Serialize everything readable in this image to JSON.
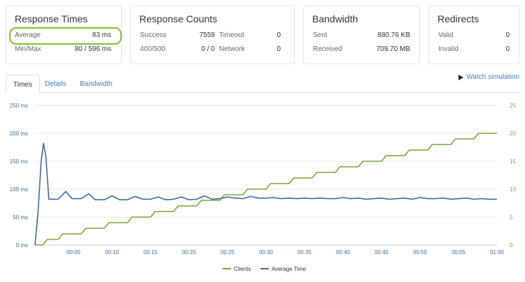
{
  "cards": {
    "response_times": {
      "title": "Response Times",
      "average_label": "Average",
      "average_value": "83 ms",
      "minmax_label": "Min/Max",
      "minmax_value": "80 / 596 ms"
    },
    "response_counts": {
      "title": "Response Counts",
      "success_label": "Success",
      "success_value": "7559",
      "timeout_label": "Timeout",
      "timeout_value": "0",
      "errors_label": "400/500",
      "errors_value": "0 / 0",
      "network_label": "Network",
      "network_value": "0"
    },
    "bandwidth": {
      "title": "Bandwidth",
      "sent_label": "Sent",
      "sent_value": "880.76 KB",
      "received_label": "Received",
      "received_value": "709.70 MB"
    },
    "redirects": {
      "title": "Redirects",
      "valid_label": "Valid",
      "valid_value": "0",
      "invalid_label": "Invalid",
      "invalid_value": "0"
    }
  },
  "tabs": [
    {
      "label": "Times",
      "active": true
    },
    {
      "label": "Details",
      "active": false
    },
    {
      "label": "Bandwidth",
      "active": false
    }
  ],
  "watch_simulation": {
    "label": "Watch simulation",
    "icon": "play-icon"
  },
  "colors": {
    "clients": "#7aa63a",
    "average_time": "#3d6b9e",
    "highlight": "#7cc22a",
    "link": "#3a7ec6"
  },
  "chart_data": {
    "type": "line",
    "title": "",
    "xlabel": "",
    "x_ticks": [
      "00:05",
      "00:10",
      "00:15",
      "00:20",
      "00:25",
      "00:30",
      "00:35",
      "00:40",
      "00:45",
      "00:50",
      "00:55",
      "01:00"
    ],
    "x_range_seconds": [
      0,
      60
    ],
    "y_left": {
      "ticks": [
        "0 ms",
        "50 ms",
        "100 ms",
        "150 ms",
        "200 ms",
        "250 ms"
      ],
      "range": [
        0,
        250
      ],
      "unit": "ms"
    },
    "y_right": {
      "ticks": [
        "0",
        "5",
        "10",
        "15",
        "20",
        "25"
      ],
      "range": [
        0,
        25
      ]
    },
    "grid": true,
    "legend_placement": "bottom",
    "series": [
      {
        "name": "Clients",
        "axis": "right",
        "step_times_seconds": [
          0,
          1,
          3,
          6,
          9,
          12,
          15,
          18,
          21,
          24,
          27,
          30,
          33,
          36,
          39,
          42,
          45,
          48,
          51,
          54,
          57
        ],
        "step_values": [
          0,
          1,
          2,
          3,
          4,
          5,
          6,
          7,
          8,
          9,
          10,
          11,
          12,
          13,
          14,
          15,
          16,
          17,
          18,
          19,
          20
        ],
        "end_seconds": 60
      },
      {
        "name": "Average Time",
        "axis": "left",
        "points": [
          [
            0,
            0
          ],
          [
            0.4,
            60
          ],
          [
            0.8,
            150
          ],
          [
            1.1,
            182
          ],
          [
            1.4,
            160
          ],
          [
            1.8,
            82
          ],
          [
            3,
            82
          ],
          [
            4,
            96
          ],
          [
            4.8,
            83
          ],
          [
            6,
            83
          ],
          [
            7,
            92
          ],
          [
            7.8,
            81
          ],
          [
            9,
            81
          ],
          [
            10,
            88
          ],
          [
            11,
            81
          ],
          [
            12,
            81
          ],
          [
            13,
            87
          ],
          [
            14,
            82
          ],
          [
            15,
            82
          ],
          [
            16,
            86
          ],
          [
            17,
            81
          ],
          [
            18,
            82
          ],
          [
            19,
            86
          ],
          [
            20,
            81
          ],
          [
            21,
            82
          ],
          [
            22,
            88
          ],
          [
            23,
            82
          ],
          [
            24,
            83
          ],
          [
            25,
            86
          ],
          [
            26,
            84
          ],
          [
            27,
            83
          ],
          [
            28,
            87
          ],
          [
            29,
            84
          ],
          [
            30,
            84
          ],
          [
            31,
            85
          ],
          [
            32,
            83
          ],
          [
            33,
            84
          ],
          [
            34,
            83
          ],
          [
            35,
            84
          ],
          [
            36,
            83
          ],
          [
            37,
            84
          ],
          [
            38,
            83
          ],
          [
            39,
            83
          ],
          [
            40,
            85
          ],
          [
            41,
            83
          ],
          [
            42,
            84
          ],
          [
            43,
            82
          ],
          [
            44,
            83
          ],
          [
            45,
            84
          ],
          [
            46,
            82
          ],
          [
            47,
            83
          ],
          [
            48,
            84
          ],
          [
            49,
            82
          ],
          [
            50,
            85
          ],
          [
            51,
            83
          ],
          [
            52,
            83
          ],
          [
            53,
            84
          ],
          [
            54,
            82
          ],
          [
            55,
            83
          ],
          [
            56,
            84
          ],
          [
            57,
            82
          ],
          [
            58,
            83
          ],
          [
            59,
            82
          ],
          [
            60,
            82
          ]
        ]
      }
    ]
  }
}
